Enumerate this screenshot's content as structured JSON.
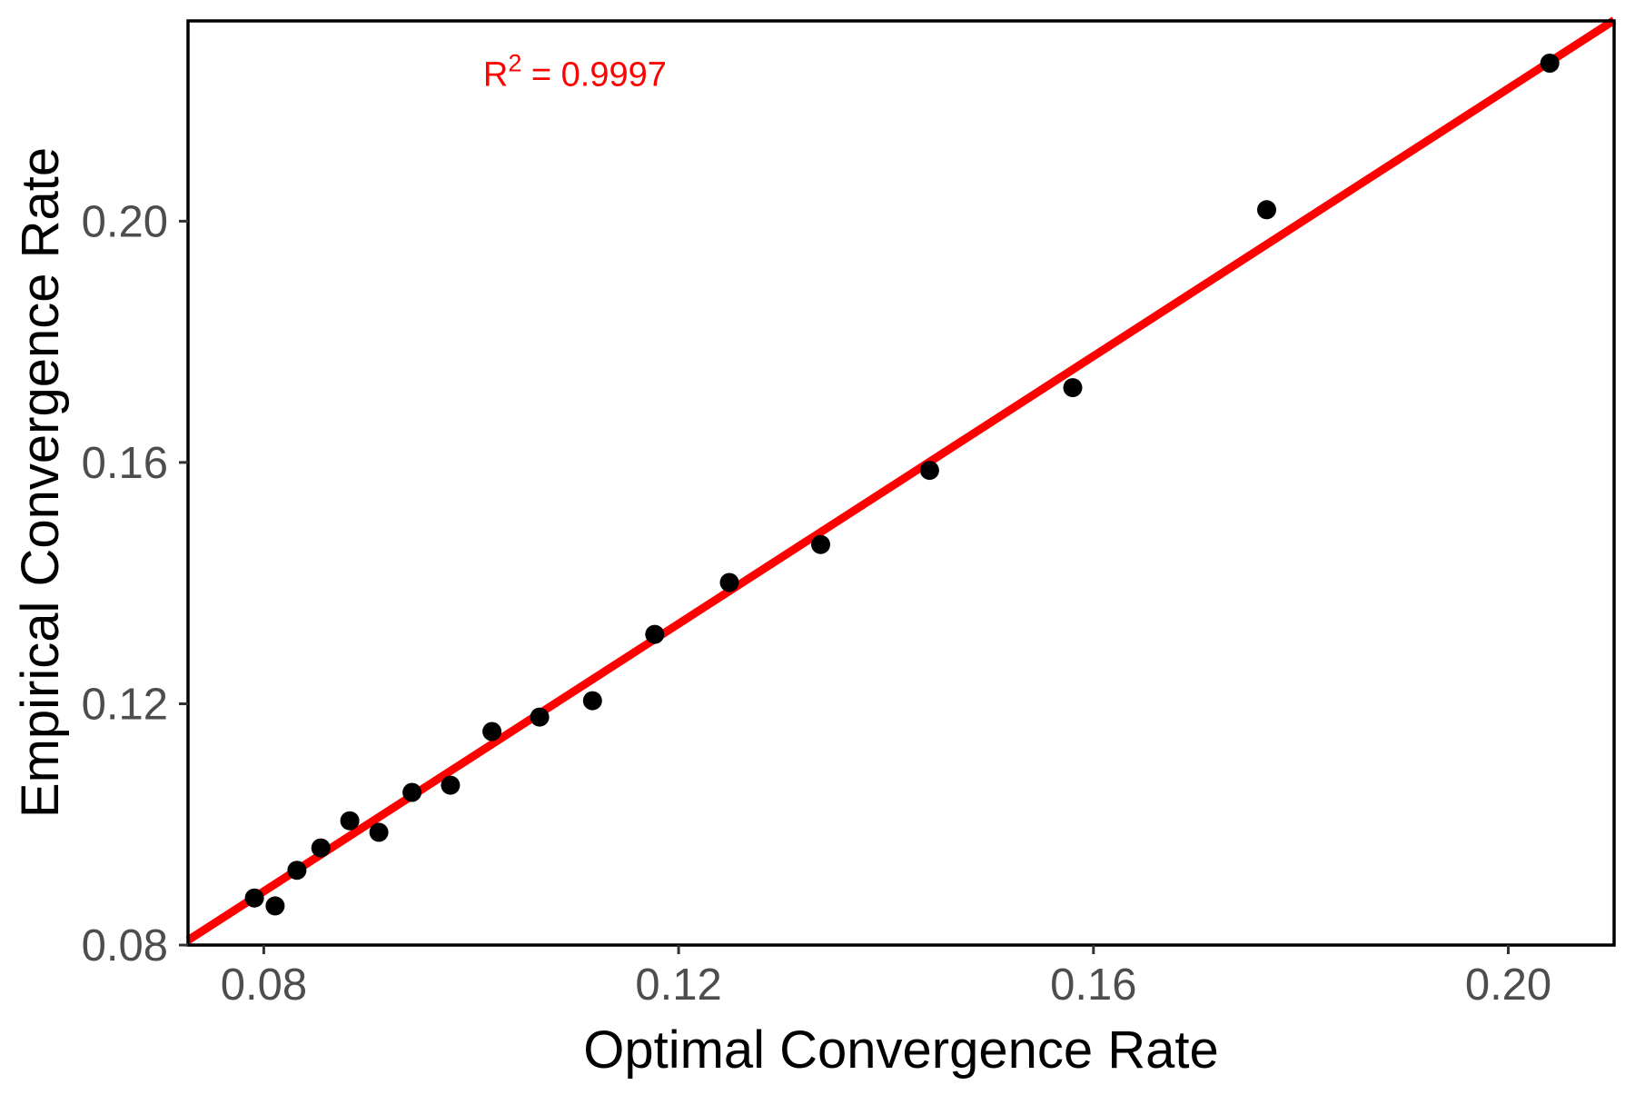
{
  "chart_data": {
    "type": "scatter",
    "title": "",
    "xlabel": "Optimal Convergence Rate",
    "ylabel": "Empirical Convergence Rate",
    "xlim": [
      0.0727,
      0.2102
    ],
    "ylim": [
      0.08,
      0.2332
    ],
    "x_ticks": [
      0.08,
      0.12,
      0.16,
      0.2
    ],
    "x_tick_labels": [
      "0.08",
      "0.12",
      "0.16",
      "0.20"
    ],
    "y_ticks": [
      0.08,
      0.12,
      0.16,
      0.2
    ],
    "y_tick_labels": [
      "0.08",
      "0.12",
      "0.16",
      "0.20"
    ],
    "grid": false,
    "legend": "none",
    "points": [
      [
        0.0791,
        0.0878
      ],
      [
        0.0811,
        0.0865
      ],
      [
        0.0832,
        0.0924
      ],
      [
        0.0855,
        0.0961
      ],
      [
        0.0883,
        0.1006
      ],
      [
        0.0911,
        0.0987
      ],
      [
        0.0943,
        0.1053
      ],
      [
        0.098,
        0.1065
      ],
      [
        0.102,
        0.1154
      ],
      [
        0.1066,
        0.1178
      ],
      [
        0.1117,
        0.1205
      ],
      [
        0.1177,
        0.1315
      ],
      [
        0.1249,
        0.1401
      ],
      [
        0.1337,
        0.1464
      ],
      [
        0.1442,
        0.1587
      ],
      [
        0.158,
        0.1724
      ],
      [
        0.1767,
        0.2019
      ],
      [
        0.204,
        0.2262
      ]
    ],
    "point_color": "#000000",
    "point_radius": 10.5,
    "fit_line": {
      "x1": 0.0727,
      "y1": 0.0808,
      "x2": 0.2102,
      "y2": 0.2333,
      "color": "#FF0000",
      "width": 9
    },
    "annotation": {
      "text_base": "R",
      "text_sup": "2",
      "text_rest": " = 0.9997",
      "full_text": "R2 = 0.9997",
      "x": 0.11,
      "y": 0.2224,
      "color": "#FF0000"
    },
    "panel_border_color": "#000000",
    "tick_mark_color": "#333333",
    "tick_label_color": "#4D4D4D"
  }
}
